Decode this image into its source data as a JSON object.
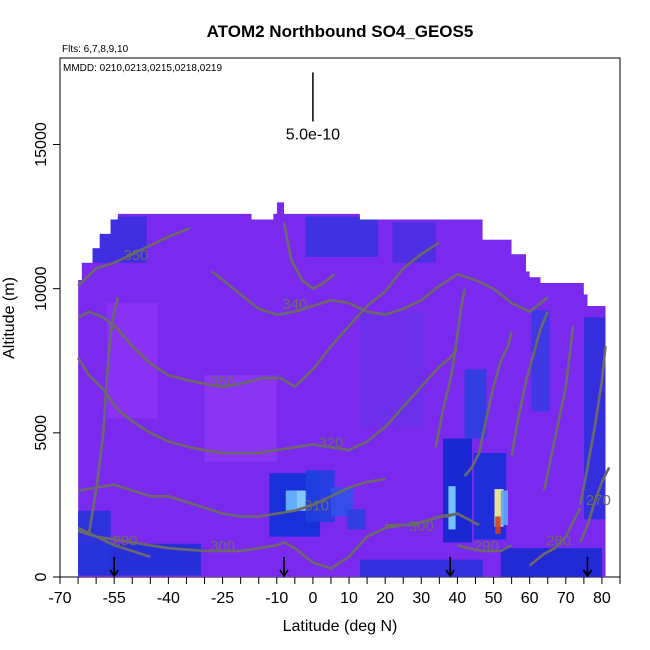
{
  "chart_data": {
    "type": "heatmap",
    "title": "ATOM2 Northbound SO4_GEOS5",
    "flights_note": "Flts: 6,7,8,9,10",
    "dates_note": "MMDD: 0210,0213,0215,0218,0219",
    "xlabel": "Latitude (deg N)",
    "ylabel": "Altitude (m)",
    "xlim": [
      -70,
      85
    ],
    "ylim": [
      0,
      18000
    ],
    "x_tick_labels": [
      "-70",
      "-55",
      "-40",
      "-25",
      "-10",
      "0",
      "10",
      "20",
      "30",
      "40",
      "50",
      "60",
      "70",
      "80"
    ],
    "x_tick_values": [
      -70,
      -55,
      -40,
      -25,
      -10,
      0,
      10,
      20,
      30,
      40,
      50,
      60,
      70,
      80
    ],
    "x_minor_ticks": [
      -65,
      -60,
      -50,
      -45,
      -35,
      -30,
      -20,
      -15,
      -5,
      5,
      15,
      25,
      35,
      45,
      55,
      65,
      75,
      85
    ],
    "y_tick_values": [
      0,
      5000,
      10000,
      15000
    ],
    "y_tick_labels": [
      "0",
      "5000",
      "10000",
      "15000"
    ],
    "scale_bar": {
      "label": "5.0e-10",
      "x": 0,
      "y_from": 15800,
      "y_to": 17500
    },
    "background_color": "#7a2aee",
    "data_top_profile": {
      "lat": [
        -65,
        -64,
        -61,
        -59,
        -56,
        -54,
        -44,
        -28,
        -17,
        -11,
        -10,
        -8,
        -5,
        13,
        20,
        31,
        37,
        47,
        53,
        55,
        58,
        59,
        60,
        63,
        75,
        76,
        81
      ],
      "alt": [
        10300,
        10900,
        11400,
        11900,
        12400,
        12600,
        12600,
        12600,
        12400,
        12600,
        13000,
        12600,
        12600,
        12400,
        12400,
        12400,
        12400,
        11700,
        11700,
        11200,
        11200,
        10600,
        10400,
        10200,
        9800,
        9400,
        9400
      ]
    },
    "anomalies": [
      {
        "lat": -5,
        "alt": 2500,
        "w": 14,
        "h": 2200,
        "color": "#1030d8"
      },
      {
        "lat": -6,
        "alt": 2650,
        "w": 3,
        "h": 700,
        "color": "#6ab8ff"
      },
      {
        "lat": -3,
        "alt": 2650,
        "w": 3,
        "h": 700,
        "color": "#8cd6ff"
      },
      {
        "lat": 2,
        "alt": 2800,
        "w": 8,
        "h": 1800,
        "color": "#2040e0"
      },
      {
        "lat": 8,
        "alt": 2600,
        "w": 6,
        "h": 1000,
        "color": "#3050e8"
      },
      {
        "lat": 12,
        "alt": 2000,
        "w": 5,
        "h": 700,
        "color": "#2a40e0"
      },
      {
        "lat": 40,
        "alt": 3000,
        "w": 8,
        "h": 3600,
        "color": "#1028d0"
      },
      {
        "lat": 38.5,
        "alt": 2400,
        "w": 2,
        "h": 1500,
        "color": "#7ad0ff"
      },
      {
        "lat": 49,
        "alt": 2800,
        "w": 9,
        "h": 3000,
        "color": "#1830d8"
      },
      {
        "lat": 51.5,
        "alt": 2400,
        "w": 2.5,
        "h": 1300,
        "color": "#f8f090"
      },
      {
        "lat": 51.2,
        "alt": 1800,
        "w": 1.5,
        "h": 600,
        "color": "#d04020"
      },
      {
        "lat": 53,
        "alt": 2400,
        "w": 2,
        "h": 1200,
        "color": "#60a8ff"
      },
      {
        "lat": 45,
        "alt": 6000,
        "w": 6,
        "h": 2400,
        "color": "#2c40e0"
      },
      {
        "lat": 63,
        "alt": 7500,
        "w": 5,
        "h": 3500,
        "color": "#3a3ae4"
      },
      {
        "lat": 78,
        "alt": 5500,
        "w": 6,
        "h": 7000,
        "color": "#2c30dc"
      },
      {
        "lat": 8,
        "alt": 11800,
        "w": 20,
        "h": 1400,
        "color": "#3a34e0"
      },
      {
        "lat": 28,
        "alt": 11600,
        "w": 12,
        "h": 1400,
        "color": "#4a30e2"
      },
      {
        "lat": -55,
        "alt": 11700,
        "w": 18,
        "h": 1600,
        "color": "#3a30de"
      },
      {
        "lat": 66,
        "alt": 500,
        "w": 28,
        "h": 1000,
        "color": "#1a2ad4"
      },
      {
        "lat": 30,
        "alt": 300,
        "w": 34,
        "h": 600,
        "color": "#2a30dc"
      },
      {
        "lat": -48,
        "alt": 600,
        "w": 34,
        "h": 1100,
        "color": "#2030d8"
      },
      {
        "lat": -62,
        "alt": 1200,
        "w": 12,
        "h": 2200,
        "color": "#2534d8"
      },
      {
        "lat": -20,
        "alt": 5500,
        "w": 20,
        "h": 3000,
        "color": "#8a36f2"
      },
      {
        "lat": -50,
        "alt": 7500,
        "w": 14,
        "h": 4000,
        "color": "#8a32f4"
      },
      {
        "lat": 22,
        "alt": 7200,
        "w": 18,
        "h": 4000,
        "color": "#6a30ea"
      }
    ],
    "contours": [
      {
        "label": "350",
        "label_lat": -49,
        "label_alt": 11000,
        "lat": [
          -65,
          -60,
          -55,
          -50,
          -45,
          -40,
          -36,
          -34
        ],
        "alt": [
          10100,
          10700,
          10900,
          11200,
          11500,
          11800,
          12000,
          12100
        ]
      },
      {
        "label": "350",
        "label_lat": -25,
        "label_alt": 6600,
        "lat": [
          -65,
          -62,
          -58,
          -54,
          -50,
          -45,
          -40,
          -34,
          -30,
          -25,
          -20,
          -14,
          -9,
          -5,
          0,
          5,
          10,
          15,
          20,
          25,
          30,
          35
        ],
        "alt": [
          9000,
          9200,
          9000,
          8600,
          8000,
          7400,
          7000,
          6800,
          6700,
          6600,
          6700,
          6900,
          6900,
          6600,
          7200,
          8000,
          8700,
          9400,
          9900,
          10700,
          11200,
          11600
        ]
      },
      {
        "label": "340",
        "label_lat": -5,
        "label_alt": 9300,
        "lat": [
          -28,
          -25,
          -20,
          -15,
          -10,
          -5,
          0,
          5,
          10,
          15,
          20,
          25,
          30,
          35,
          40,
          45,
          50,
          55,
          60,
          65
        ],
        "alt": [
          10600,
          10300,
          9800,
          9300,
          9100,
          9200,
          9400,
          9600,
          9500,
          9200,
          9100,
          9300,
          9600,
          10100,
          10500,
          10300,
          10000,
          9500,
          9200,
          9700
        ]
      },
      {
        "label": "320",
        "label_lat": 5,
        "label_alt": 4500,
        "lat": [
          -65,
          -62,
          -58,
          -54,
          -50,
          -45,
          -40,
          -34,
          -30,
          -25,
          -20,
          -15,
          -10,
          -5,
          0,
          5,
          10,
          15,
          20,
          25,
          30,
          35,
          38,
          40
        ],
        "alt": [
          7600,
          7000,
          6500,
          5800,
          5400,
          5000,
          4700,
          4500,
          4400,
          4300,
          4300,
          4300,
          4400,
          4500,
          4600,
          4500,
          4400,
          4700,
          5200,
          5900,
          6600,
          7300,
          7600,
          7900
        ]
      },
      {
        "label": "310",
        "label_lat": 1,
        "label_alt": 2300,
        "lat": [
          -65,
          -60,
          -55,
          -50,
          -45,
          -40,
          -35,
          -30,
          -25,
          -20,
          -15,
          -10,
          -5,
          0,
          5,
          10,
          15,
          20
        ],
        "alt": [
          3000,
          3100,
          3200,
          3000,
          2800,
          2800,
          2600,
          2400,
          2200,
          2100,
          2100,
          2200,
          2300,
          2500,
          2800,
          3100,
          3300,
          3400
        ]
      },
      {
        "label": "300",
        "label_lat": -25,
        "label_alt": 900,
        "lat": [
          -65,
          -60,
          -55,
          -50,
          -45,
          -40,
          -35,
          -30,
          -25,
          -20,
          -15,
          -10,
          -8,
          -5,
          0,
          5,
          10,
          15,
          20,
          25,
          28,
          30,
          33,
          35,
          37,
          40
        ],
        "alt": [
          1600,
          1400,
          1300,
          1200,
          1100,
          1000,
          950,
          900,
          900,
          900,
          1000,
          1100,
          1200,
          1000,
          500,
          300,
          700,
          1400,
          1700,
          1800,
          1800,
          1900,
          2000,
          2100,
          2100,
          2200
        ]
      },
      {
        "label": "290",
        "label_lat": -52,
        "label_alt": 1100,
        "lat": [
          -65,
          -60,
          -55,
          -50,
          -45
        ],
        "alt": [
          1700,
          1400,
          1100,
          900,
          700
        ]
      },
      {
        "label": "290",
        "label_lat": 48,
        "label_alt": 900,
        "lat": [
          40,
          43,
          47,
          52,
          55
        ],
        "alt": [
          1100,
          1000,
          900,
          900,
          1100
        ]
      },
      {
        "label": "300",
        "label_lat": 30,
        "label_alt": 1600,
        "lat": [
          20,
          25,
          30,
          35,
          40,
          43,
          46
        ],
        "alt": [
          1800,
          1800,
          1900,
          2100,
          2200,
          2000,
          1800
        ]
      },
      {
        "label": "280",
        "label_lat": 68,
        "label_alt": 1100,
        "lat": [
          60,
          64,
          67,
          70,
          72,
          74
        ],
        "alt": [
          400,
          800,
          1000,
          1400,
          1900,
          2400
        ]
      },
      {
        "label": "270",
        "label_lat": 79,
        "label_alt": 2500,
        "lat": [
          74,
          76,
          78,
          80,
          82
        ],
        "alt": [
          1200,
          1800,
          2600,
          3300,
          3800
        ]
      }
    ],
    "vertical_contours": [
      {
        "lat": [
          -62,
          -60,
          -58,
          -57,
          -56,
          -55,
          -54
        ],
        "alt": [
          1500,
          3000,
          5000,
          7000,
          8400,
          9200,
          9700
        ]
      },
      {
        "lat": [
          -8,
          -6,
          -3,
          0,
          3,
          6
        ],
        "alt": [
          12300,
          11000,
          10300,
          10000,
          10200,
          10500
        ]
      },
      {
        "lat": [
          34,
          36,
          38,
          39,
          40,
          41,
          42
        ],
        "alt": [
          4500,
          5800,
          6800,
          7500,
          8400,
          9300,
          10000
        ]
      },
      {
        "lat": [
          42,
          44,
          46,
          48,
          50,
          52,
          54,
          55
        ],
        "alt": [
          3500,
          3800,
          4300,
          5500,
          6600,
          7500,
          8000,
          8500
        ]
      },
      {
        "lat": [
          55,
          57,
          59,
          61,
          63,
          65
        ],
        "alt": [
          4200,
          5600,
          6800,
          7700,
          8600,
          9200
        ]
      },
      {
        "lat": [
          64,
          66,
          68,
          70,
          71,
          72
        ],
        "alt": [
          3000,
          4200,
          5400,
          6600,
          7600,
          8700
        ]
      },
      {
        "lat": [
          74,
          76,
          78,
          80,
          81
        ],
        "alt": [
          2500,
          3800,
          5200,
          6800,
          8000
        ]
      }
    ],
    "flight_arrows": [
      {
        "lat": -55,
        "alt_from": 700,
        "alt_to": 0
      },
      {
        "lat": -8,
        "alt_from": 700,
        "alt_to": 0
      },
      {
        "lat": 38,
        "alt_from": 700,
        "alt_to": 0
      },
      {
        "lat": 76,
        "alt_from": 700,
        "alt_to": 0
      }
    ]
  }
}
